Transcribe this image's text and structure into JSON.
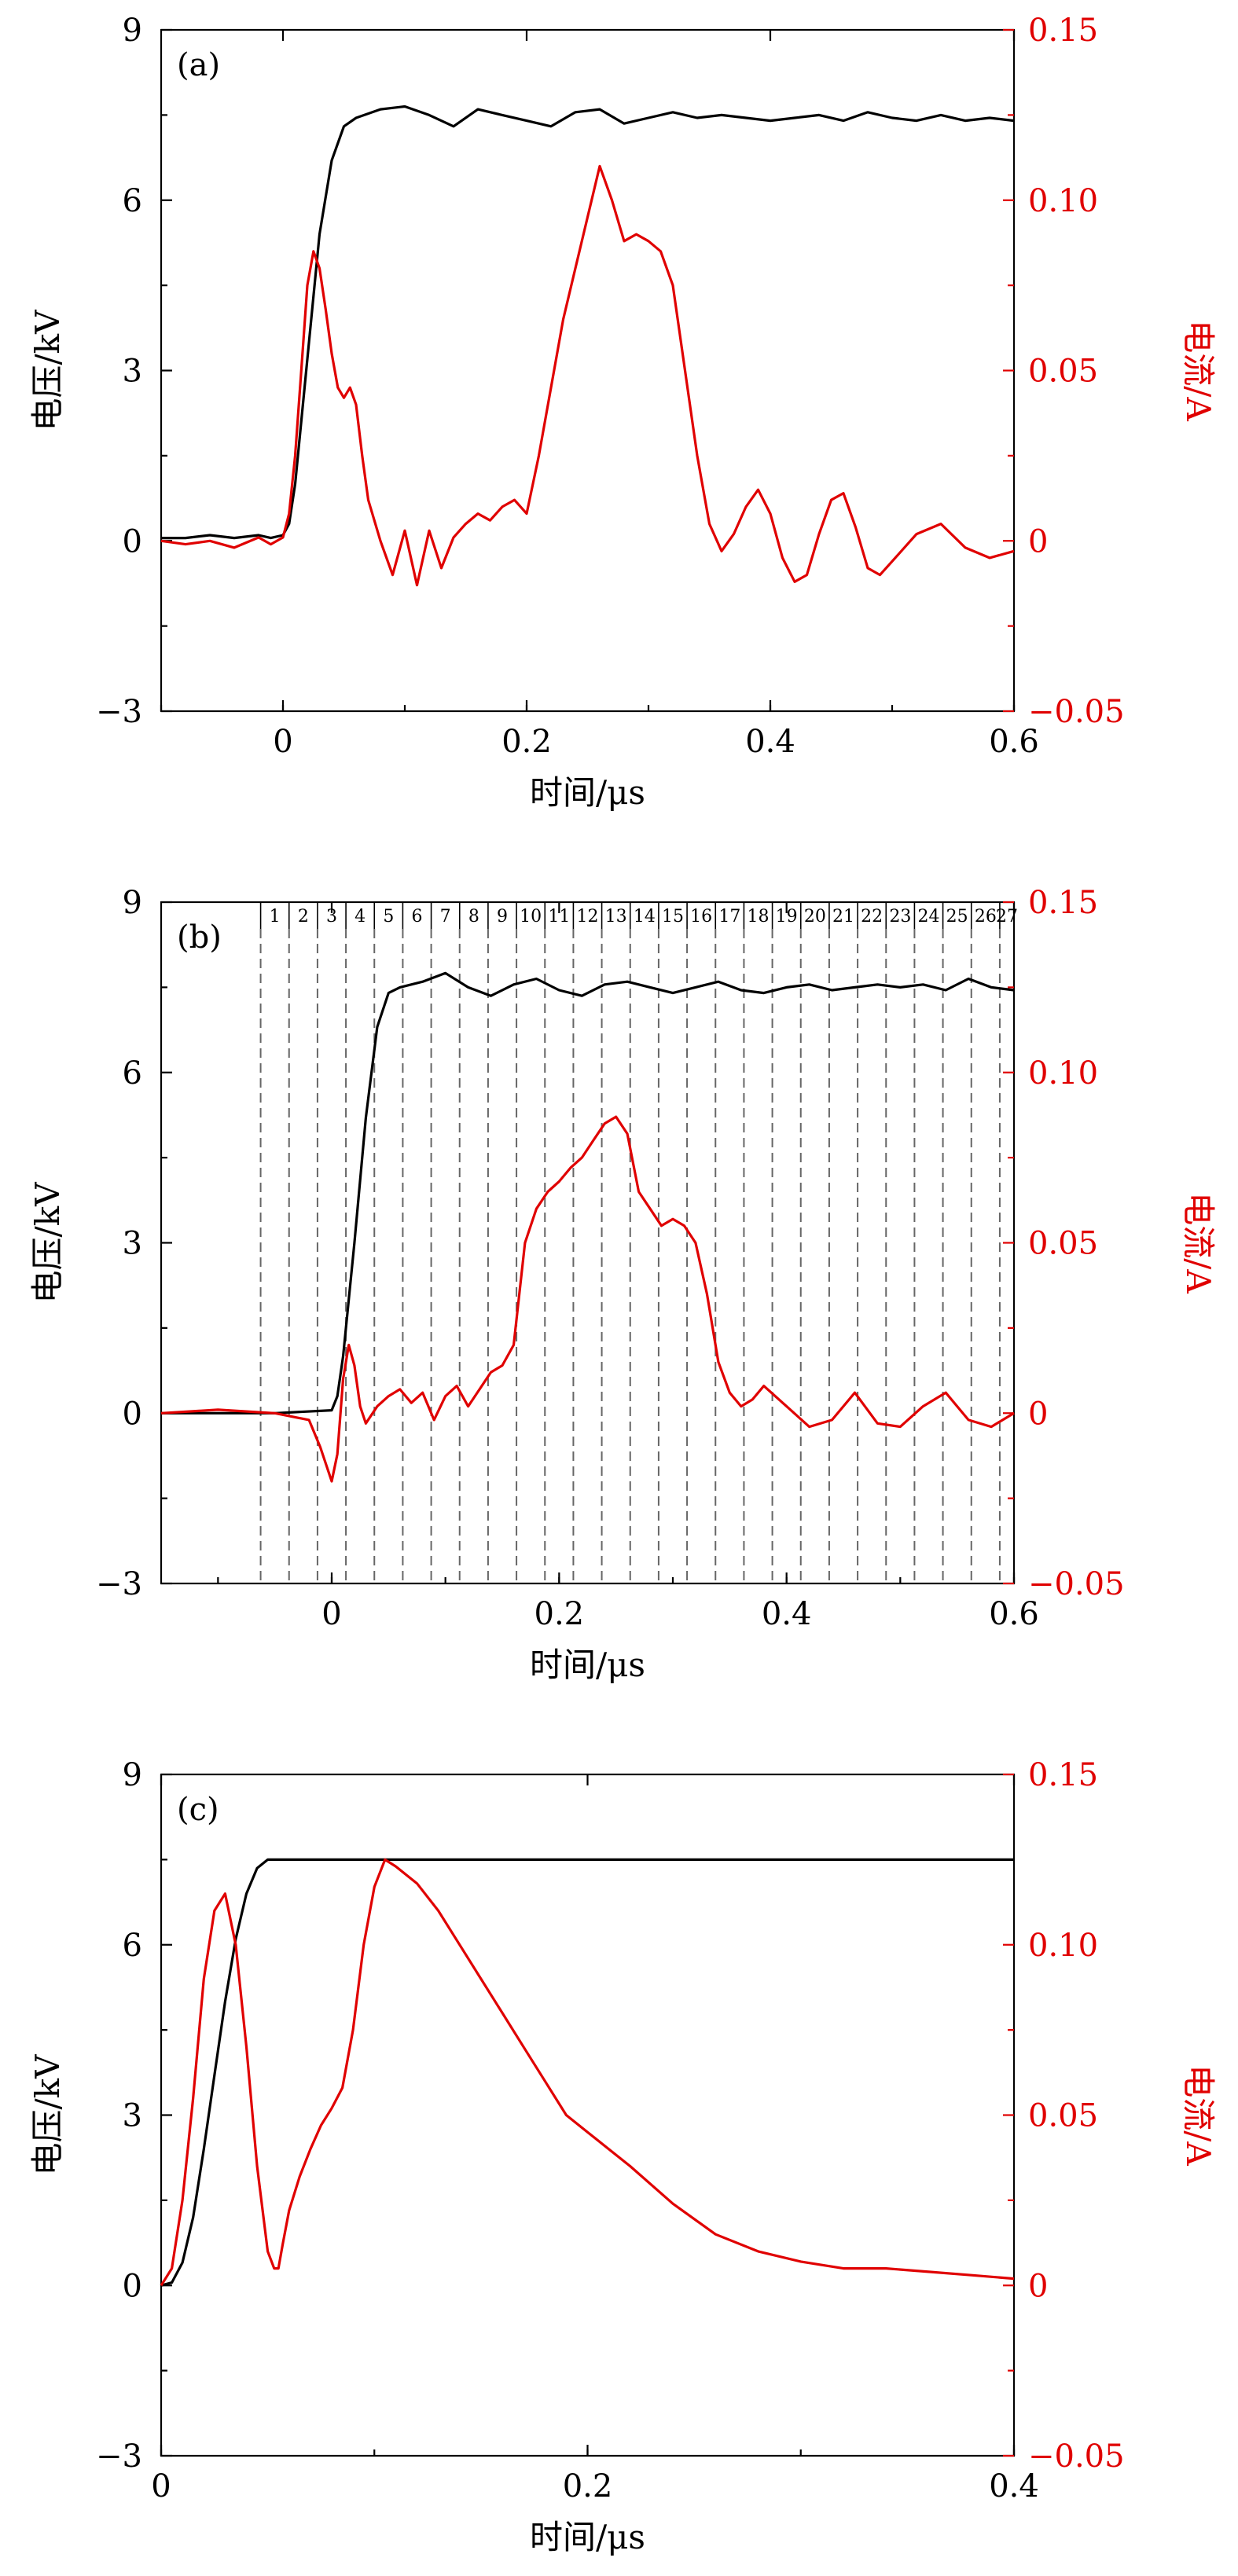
{
  "figure_colors": {
    "voltage": "#000000",
    "current": "#e00000"
  },
  "chart_data": [
    {
      "panel_label": "(a)",
      "type": "line",
      "xlabel": "时间/μs",
      "ylabel_left": "电压/kV",
      "ylabel_right": "电流/A",
      "xlim": [
        -0.1,
        0.6
      ],
      "ylim_left": [
        -3,
        9
      ],
      "ylim_right": [
        -0.05,
        0.15
      ],
      "xticks": [
        0,
        0.2,
        0.4,
        0.6
      ],
      "xtick_labels": [
        "0",
        "0.2",
        "0.4",
        "0.6"
      ],
      "yticks_left": [
        -3,
        0,
        3,
        6,
        9
      ],
      "ytick_labels_left": [
        "−3",
        "0",
        "3",
        "6",
        "9"
      ],
      "yticks_right": [
        -0.05,
        0,
        0.05,
        0.1,
        0.15
      ],
      "ytick_labels_right": [
        "−0.05",
        "0",
        "0.05",
        "0.10",
        "0.15"
      ],
      "series": [
        {
          "axis": "left",
          "color": "#000000",
          "x": [
            -0.1,
            -0.08,
            -0.06,
            -0.04,
            -0.02,
            -0.01,
            0,
            0.005,
            0.01,
            0.02,
            0.03,
            0.04,
            0.05,
            0.06,
            0.08,
            0.1,
            0.12,
            0.14,
            0.16,
            0.18,
            0.2,
            0.22,
            0.24,
            0.26,
            0.28,
            0.3,
            0.32,
            0.34,
            0.36,
            0.38,
            0.4,
            0.42,
            0.44,
            0.46,
            0.48,
            0.5,
            0.52,
            0.54,
            0.56,
            0.58,
            0.6
          ],
          "values": [
            0.05,
            0.05,
            0.1,
            0.05,
            0.1,
            0.05,
            0.1,
            0.3,
            1.0,
            3.2,
            5.4,
            6.7,
            7.3,
            7.45,
            7.6,
            7.65,
            7.5,
            7.3,
            7.6,
            7.5,
            7.4,
            7.3,
            7.55,
            7.6,
            7.35,
            7.45,
            7.55,
            7.45,
            7.5,
            7.45,
            7.4,
            7.45,
            7.5,
            7.4,
            7.55,
            7.45,
            7.4,
            7.5,
            7.4,
            7.45,
            7.4
          ]
        },
        {
          "axis": "right",
          "color": "#e00000",
          "x": [
            -0.1,
            -0.08,
            -0.06,
            -0.04,
            -0.02,
            -0.01,
            0,
            0.005,
            0.01,
            0.015,
            0.02,
            0.025,
            0.03,
            0.035,
            0.04,
            0.045,
            0.05,
            0.055,
            0.06,
            0.065,
            0.07,
            0.08,
            0.09,
            0.1,
            0.11,
            0.12,
            0.13,
            0.14,
            0.15,
            0.16,
            0.17,
            0.18,
            0.19,
            0.2,
            0.21,
            0.22,
            0.23,
            0.24,
            0.25,
            0.26,
            0.27,
            0.28,
            0.29,
            0.3,
            0.31,
            0.32,
            0.33,
            0.34,
            0.35,
            0.36,
            0.37,
            0.38,
            0.39,
            0.4,
            0.41,
            0.42,
            0.43,
            0.44,
            0.45,
            0.46,
            0.47,
            0.48,
            0.49,
            0.5,
            0.52,
            0.54,
            0.56,
            0.58,
            0.6
          ],
          "values": [
            0,
            -0.001,
            0,
            -0.002,
            0.001,
            -0.001,
            0.001,
            0.008,
            0.025,
            0.05,
            0.075,
            0.085,
            0.08,
            0.068,
            0.055,
            0.045,
            0.042,
            0.045,
            0.04,
            0.025,
            0.012,
            0.0,
            -0.01,
            0.003,
            -0.013,
            0.003,
            -0.008,
            0.001,
            0.005,
            0.008,
            0.006,
            0.01,
            0.012,
            0.008,
            0.025,
            0.045,
            0.065,
            0.08,
            0.095,
            0.11,
            0.1,
            0.088,
            0.09,
            0.088,
            0.085,
            0.075,
            0.05,
            0.025,
            0.005,
            -0.003,
            0.002,
            0.01,
            0.015,
            0.008,
            -0.005,
            -0.012,
            -0.01,
            0.002,
            0.012,
            0.014,
            0.004,
            -0.008,
            -0.01,
            -0.006,
            0.002,
            0.005,
            -0.002,
            -0.005,
            -0.003
          ]
        }
      ]
    },
    {
      "panel_label": "(b)",
      "type": "line",
      "xlabel": "时间/μs",
      "ylabel_left": "电压/kV",
      "ylabel_right": "电流/A",
      "xlim": [
        -0.15,
        0.6
      ],
      "ylim_left": [
        -3,
        9
      ],
      "ylim_right": [
        -0.05,
        0.15
      ],
      "xticks": [
        0,
        0.2,
        0.4,
        0.6
      ],
      "xtick_labels": [
        "0",
        "0.2",
        "0.4",
        "0.6"
      ],
      "yticks_left": [
        -3,
        0,
        3,
        6,
        9
      ],
      "ytick_labels_left": [
        "−3",
        "0",
        "3",
        "6",
        "9"
      ],
      "yticks_right": [
        -0.05,
        0,
        0.05,
        0.1,
        0.15
      ],
      "ytick_labels_right": [
        "−0.05",
        "0",
        "0.05",
        "0.10",
        "0.15"
      ],
      "segment_boundaries": [
        -0.0625,
        -0.0375,
        -0.0125,
        0.0125,
        0.0375,
        0.0625,
        0.0875,
        0.1125,
        0.1375,
        0.1625,
        0.1875,
        0.2125,
        0.2375,
        0.2625,
        0.2875,
        0.3125,
        0.3375,
        0.3625,
        0.3875,
        0.4125,
        0.4375,
        0.4625,
        0.4875,
        0.5125,
        0.5375,
        0.5625,
        0.5875
      ],
      "segment_labels": [
        "1",
        "2",
        "3",
        "4",
        "5",
        "6",
        "7",
        "8",
        "9",
        "10",
        "11",
        "12",
        "13",
        "14",
        "15",
        "16",
        "17",
        "18",
        "19",
        "20",
        "21",
        "22",
        "23",
        "24",
        "25",
        "26",
        "27"
      ],
      "series": [
        {
          "axis": "left",
          "color": "#000000",
          "x": [
            -0.15,
            -0.1,
            -0.05,
            0,
            0.005,
            0.01,
            0.02,
            0.03,
            0.04,
            0.05,
            0.06,
            0.08,
            0.1,
            0.12,
            0.14,
            0.16,
            0.18,
            0.2,
            0.22,
            0.24,
            0.26,
            0.28,
            0.3,
            0.32,
            0.34,
            0.36,
            0.38,
            0.4,
            0.42,
            0.44,
            0.46,
            0.48,
            0.5,
            0.52,
            0.54,
            0.56,
            0.58,
            0.6
          ],
          "values": [
            0,
            0,
            0,
            0.05,
            0.3,
            1.0,
            3.0,
            5.2,
            6.8,
            7.4,
            7.5,
            7.6,
            7.75,
            7.5,
            7.35,
            7.55,
            7.65,
            7.45,
            7.35,
            7.55,
            7.6,
            7.5,
            7.4,
            7.5,
            7.6,
            7.45,
            7.4,
            7.5,
            7.55,
            7.45,
            7.5,
            7.55,
            7.5,
            7.55,
            7.45,
            7.65,
            7.5,
            7.45
          ]
        },
        {
          "axis": "right",
          "color": "#e00000",
          "x": [
            -0.15,
            -0.1,
            -0.05,
            -0.02,
            -0.01,
            0,
            0.005,
            0.01,
            0.015,
            0.02,
            0.025,
            0.03,
            0.04,
            0.05,
            0.06,
            0.07,
            0.08,
            0.09,
            0.1,
            0.11,
            0.12,
            0.13,
            0.14,
            0.15,
            0.16,
            0.17,
            0.18,
            0.19,
            0.2,
            0.21,
            0.22,
            0.23,
            0.24,
            0.25,
            0.26,
            0.27,
            0.28,
            0.29,
            0.3,
            0.31,
            0.32,
            0.33,
            0.34,
            0.35,
            0.36,
            0.37,
            0.38,
            0.39,
            0.4,
            0.42,
            0.44,
            0.46,
            0.48,
            0.5,
            0.52,
            0.54,
            0.56,
            0.58,
            0.6
          ],
          "values": [
            0,
            0.001,
            0,
            -0.002,
            -0.01,
            -0.02,
            -0.012,
            0.01,
            0.02,
            0.014,
            0.002,
            -0.003,
            0.002,
            0.005,
            0.007,
            0.003,
            0.006,
            -0.002,
            0.005,
            0.008,
            0.002,
            0.007,
            0.012,
            0.014,
            0.02,
            0.05,
            0.06,
            0.065,
            0.068,
            0.072,
            0.075,
            0.08,
            0.085,
            0.087,
            0.082,
            0.065,
            0.06,
            0.055,
            0.057,
            0.055,
            0.05,
            0.035,
            0.015,
            0.006,
            0.002,
            0.004,
            0.008,
            0.005,
            0.002,
            -0.004,
            -0.002,
            0.006,
            -0.003,
            -0.004,
            0.002,
            0.006,
            -0.002,
            -0.004,
            0.0
          ]
        }
      ]
    },
    {
      "panel_label": "(c)",
      "type": "line",
      "xlabel": "时间/μs",
      "ylabel_left": "电压/kV",
      "ylabel_right": "电流/A",
      "xlim": [
        0,
        0.4
      ],
      "ylim_left": [
        -3,
        9
      ],
      "ylim_right": [
        -0.05,
        0.15
      ],
      "xticks": [
        0,
        0.2,
        0.4
      ],
      "xtick_labels": [
        "0",
        "0.2",
        "0.4"
      ],
      "yticks_left": [
        -3,
        0,
        3,
        6,
        9
      ],
      "ytick_labels_left": [
        "−3",
        "0",
        "3",
        "6",
        "9"
      ],
      "yticks_right": [
        -0.05,
        0,
        0.05,
        0.1,
        0.15
      ],
      "ytick_labels_right": [
        "−0.05",
        "0",
        "0.05",
        "0.10",
        "0.15"
      ],
      "series": [
        {
          "axis": "left",
          "color": "#000000",
          "x": [
            0,
            0.005,
            0.01,
            0.015,
            0.02,
            0.025,
            0.03,
            0.035,
            0.04,
            0.045,
            0.05,
            0.06,
            0.1,
            0.2,
            0.3,
            0.4
          ],
          "values": [
            0,
            0.05,
            0.4,
            1.2,
            2.4,
            3.7,
            5.0,
            6.1,
            6.9,
            7.35,
            7.5,
            7.5,
            7.5,
            7.5,
            7.5,
            7.5
          ]
        },
        {
          "axis": "right",
          "color": "#e00000",
          "x": [
            0,
            0.005,
            0.01,
            0.015,
            0.02,
            0.025,
            0.03,
            0.035,
            0.04,
            0.045,
            0.05,
            0.053,
            0.055,
            0.057,
            0.06,
            0.065,
            0.07,
            0.075,
            0.08,
            0.085,
            0.09,
            0.095,
            0.1,
            0.105,
            0.11,
            0.12,
            0.13,
            0.14,
            0.15,
            0.16,
            0.17,
            0.18,
            0.19,
            0.2,
            0.22,
            0.24,
            0.26,
            0.28,
            0.3,
            0.32,
            0.34,
            0.36,
            0.38,
            0.4
          ],
          "values": [
            0,
            0.005,
            0.025,
            0.055,
            0.09,
            0.11,
            0.115,
            0.1,
            0.07,
            0.035,
            0.01,
            0.005,
            0.005,
            0.012,
            0.022,
            0.032,
            0.04,
            0.047,
            0.052,
            0.058,
            0.075,
            0.1,
            0.117,
            0.125,
            0.123,
            0.118,
            0.11,
            0.1,
            0.09,
            0.08,
            0.07,
            0.06,
            0.05,
            0.045,
            0.035,
            0.024,
            0.015,
            0.01,
            0.007,
            0.005,
            0.005,
            0.004,
            0.003,
            0.002
          ]
        }
      ]
    }
  ]
}
